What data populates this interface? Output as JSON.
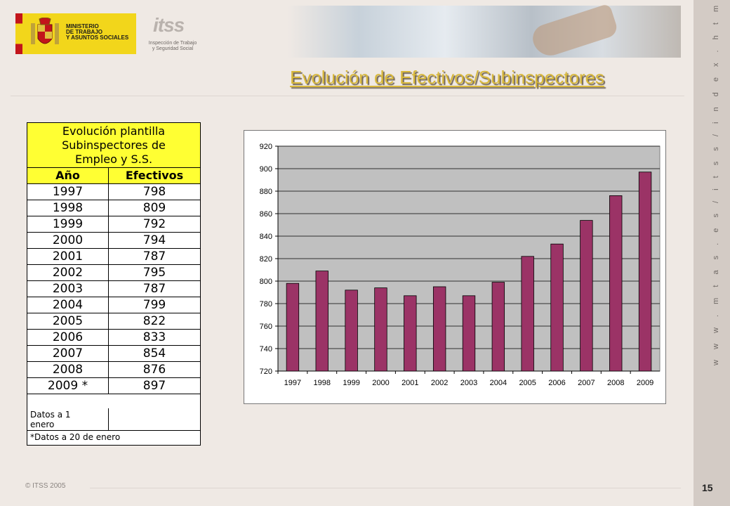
{
  "header": {
    "ministry_name": "MINISTERIO\nDE TRABAJO\nY ASUNTOS SOCIALES",
    "itss_logo_word": "itss",
    "itss_caption": "Inspección de Trabajo\ny Seguridad Social",
    "title": "Evolución de Efectivos/Subinspectores"
  },
  "sidebar": {
    "url": "w w w . m t a s . e s / i t s s / i n d e x . h t m l"
  },
  "footer": {
    "copyright": "© ITSS 2005",
    "page_number": "15"
  },
  "table": {
    "title": "Evolución plantilla\nSubinspectores de\nEmpleo y S.S.",
    "headers": [
      "Año",
      "Efectivos"
    ],
    "rows": [
      [
        "1997",
        "798"
      ],
      [
        "1998",
        "809"
      ],
      [
        "1999",
        "792"
      ],
      [
        "2000",
        "794"
      ],
      [
        "2001",
        "787"
      ],
      [
        "2002",
        "795"
      ],
      [
        "2003",
        "787"
      ],
      [
        "2004",
        "799"
      ],
      [
        "2005",
        "822"
      ],
      [
        "2006",
        "833"
      ],
      [
        "2007",
        "854"
      ],
      [
        "2008",
        "876"
      ],
      [
        "2009 *",
        "897"
      ]
    ],
    "note_label": "Datos a 1\nenero",
    "footnote": "*Datos a 20 de enero"
  },
  "colors": {
    "bar": "#9b3366",
    "plot_bg": "#c0c0c0",
    "table_header_bg": "#ffff33",
    "title_color": "#d8b83a"
  },
  "chart_data": {
    "type": "bar",
    "categories": [
      "1997",
      "1998",
      "1999",
      "2000",
      "2001",
      "2002",
      "2003",
      "2004",
      "2005",
      "2006",
      "2007",
      "2008",
      "2009"
    ],
    "values": [
      798,
      809,
      792,
      794,
      787,
      795,
      787,
      799,
      822,
      833,
      854,
      876,
      897
    ],
    "title": "",
    "xlabel": "",
    "ylabel": "",
    "ylim": [
      720,
      920
    ],
    "yticks": [
      720,
      740,
      760,
      780,
      800,
      820,
      840,
      860,
      880,
      900,
      920
    ],
    "grid": true,
    "legend": "none"
  }
}
